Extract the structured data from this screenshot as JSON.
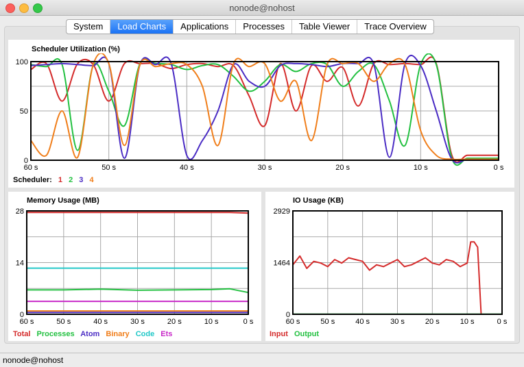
{
  "window": {
    "title": "nonode@nohost"
  },
  "tabs": [
    {
      "label": "System",
      "active": false
    },
    {
      "label": "Load Charts",
      "active": true
    },
    {
      "label": "Applications",
      "active": false
    },
    {
      "label": "Processes",
      "active": false
    },
    {
      "label": "Table Viewer",
      "active": false
    },
    {
      "label": "Trace Overview",
      "active": false
    }
  ],
  "scheduler": {
    "title": "Scheduler Utilization (%)",
    "legend_label": "Scheduler:",
    "legend": [
      {
        "name": "1",
        "color": "#d42a2a"
      },
      {
        "name": "2",
        "color": "#22c040"
      },
      {
        "name": "3",
        "color": "#4a2cc4"
      },
      {
        "name": "4",
        "color": "#f07e1a"
      }
    ]
  },
  "memory": {
    "title": "Memory Usage (MB)",
    "legend": [
      {
        "name": "Total",
        "color": "#d42a2a"
      },
      {
        "name": "Processes",
        "color": "#22c040"
      },
      {
        "name": "Atom",
        "color": "#4a2cc4"
      },
      {
        "name": "Binary",
        "color": "#f07e1a"
      },
      {
        "name": "Code",
        "color": "#22c8c8"
      },
      {
        "name": "Ets",
        "color": "#c828c8"
      }
    ]
  },
  "io": {
    "title": "IO Usage (KB)",
    "legend": [
      {
        "name": "Input",
        "color": "#d42a2a"
      },
      {
        "name": "Output",
        "color": "#22c040"
      }
    ]
  },
  "status": {
    "text": "nonode@nohost"
  },
  "chart_data": [
    {
      "type": "line",
      "title": "Scheduler Utilization (%)",
      "x": [
        60,
        58,
        56,
        54,
        52,
        50,
        48,
        46,
        44,
        42,
        40,
        38,
        36,
        34,
        32,
        30,
        28,
        26,
        24,
        22,
        20,
        18,
        16,
        14,
        12,
        10,
        8,
        6,
        4,
        2,
        0
      ],
      "x_ticks": [
        "60 s",
        "50 s",
        "40 s",
        "30 s",
        "20 s",
        "10 s",
        "0 s"
      ],
      "y_ticks": [
        "0",
        "50",
        "100"
      ],
      "ylim": [
        0,
        100
      ],
      "legend_title": "Scheduler:",
      "series": [
        {
          "name": "1",
          "color": "#d42a2a",
          "values": [
            92,
            98,
            60,
            98,
            97,
            60,
            98,
            98,
            98,
            93,
            97,
            98,
            95,
            96,
            65,
            35,
            98,
            50,
            96,
            80,
            94,
            55,
            98,
            97,
            98,
            97,
            98,
            5,
            5,
            5,
            5
          ]
        },
        {
          "name": "2",
          "color": "#22c040",
          "values": [
            97,
            95,
            97,
            10,
            96,
            70,
            35,
            98,
            98,
            97,
            92,
            96,
            97,
            85,
            70,
            80,
            97,
            90,
            98,
            97,
            75,
            90,
            97,
            60,
            15,
            97,
            97,
            2,
            2,
            2,
            2
          ]
        },
        {
          "name": "3",
          "color": "#4a2cc4",
          "values": [
            96,
            97,
            98,
            97,
            96,
            98,
            2,
            97,
            97,
            98,
            5,
            20,
            50,
            97,
            80,
            75,
            96,
            98,
            97,
            95,
            98,
            98,
            97,
            3,
            98,
            96,
            50,
            1,
            1,
            1,
            1
          ]
        },
        {
          "name": "4",
          "color": "#f07e1a",
          "values": [
            20,
            5,
            50,
            3,
            97,
            98,
            15,
            97,
            95,
            98,
            97,
            75,
            15,
            98,
            95,
            98,
            60,
            80,
            20,
            97,
            98,
            98,
            80,
            98,
            97,
            30,
            5,
            1,
            1,
            1,
            1
          ]
        }
      ]
    },
    {
      "type": "line",
      "title": "Memory Usage (MB)",
      "x": [
        60,
        50,
        40,
        30,
        20,
        10,
        5,
        0
      ],
      "x_ticks": [
        "60 s",
        "50 s",
        "40 s",
        "30 s",
        "20 s",
        "10 s",
        "0 s"
      ],
      "y_ticks": [
        "0",
        "14",
        "28"
      ],
      "ylim": [
        0,
        28
      ],
      "series": [
        {
          "name": "Total",
          "color": "#d42a2a",
          "values": [
            27.6,
            27.6,
            27.6,
            27.6,
            27.6,
            27.6,
            27.6,
            27.4
          ]
        },
        {
          "name": "Processes",
          "color": "#22c040",
          "values": [
            6.6,
            6.6,
            6.8,
            6.5,
            6.6,
            6.7,
            6.9,
            5.9
          ]
        },
        {
          "name": "Atom",
          "color": "#4a2cc4",
          "values": [
            0.5,
            0.5,
            0.5,
            0.5,
            0.5,
            0.5,
            0.5,
            0.5
          ]
        },
        {
          "name": "Binary",
          "color": "#f07e1a",
          "values": [
            0.9,
            0.9,
            0.9,
            0.9,
            0.9,
            0.9,
            0.9,
            0.9
          ]
        },
        {
          "name": "Code",
          "color": "#22c8c8",
          "values": [
            12.5,
            12.5,
            12.5,
            12.5,
            12.5,
            12.5,
            12.5,
            12.5
          ]
        },
        {
          "name": "Ets",
          "color": "#c828c8",
          "values": [
            3.5,
            3.5,
            3.5,
            3.5,
            3.5,
            3.5,
            3.5,
            3.5
          ]
        }
      ]
    },
    {
      "type": "line",
      "title": "IO Usage (KB)",
      "x": [
        60,
        58,
        56,
        54,
        52,
        50,
        48,
        46,
        44,
        42,
        40,
        38,
        36,
        34,
        32,
        30,
        28,
        26,
        24,
        22,
        20,
        18,
        16,
        14,
        12,
        10,
        9,
        8,
        7,
        6,
        4,
        2,
        0
      ],
      "x_ticks": [
        "60 s",
        "50 s",
        "40 s",
        "30 s",
        "20 s",
        "10 s",
        "0 s"
      ],
      "y_ticks": [
        "0",
        "1464",
        "2929"
      ],
      "ylim": [
        0,
        2929
      ],
      "series": [
        {
          "name": "Input",
          "color": "#d42a2a",
          "values": [
            1400,
            1650,
            1300,
            1500,
            1450,
            1350,
            1550,
            1450,
            1600,
            1550,
            1500,
            1250,
            1400,
            1350,
            1450,
            1550,
            1350,
            1400,
            1500,
            1600,
            1450,
            1400,
            1550,
            1500,
            1350,
            1450,
            2050,
            2050,
            1900,
            0,
            0,
            0,
            0
          ]
        },
        {
          "name": "Output",
          "color": "#22c040",
          "values": [
            5,
            5,
            5,
            5,
            5,
            5,
            5,
            5,
            5,
            5,
            5,
            5,
            5,
            5,
            5,
            5,
            5,
            5,
            5,
            5,
            5,
            5,
            5,
            5,
            5,
            5,
            5,
            5,
            5,
            5,
            5,
            5,
            5
          ]
        }
      ]
    }
  ]
}
